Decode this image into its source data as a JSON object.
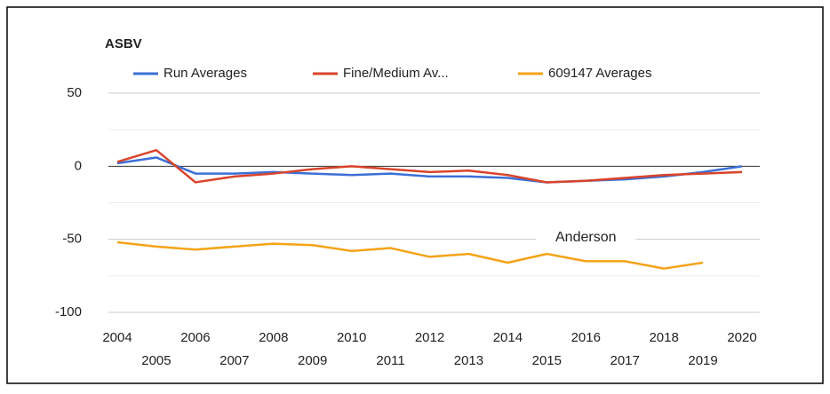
{
  "chart_data": {
    "type": "line",
    "title": "ASBV",
    "x": [
      2004,
      2005,
      2006,
      2007,
      2008,
      2009,
      2010,
      2011,
      2012,
      2013,
      2014,
      2015,
      2016,
      2017,
      2018,
      2019,
      2020
    ],
    "series": [
      {
        "name": "Run Averages",
        "color": "#3c6fd6",
        "values": [
          2,
          6,
          -5,
          -5,
          -4,
          -5,
          -6,
          -5,
          -7,
          -7,
          -8,
          -11,
          -10,
          -9,
          -7,
          -4,
          0
        ]
      },
      {
        "name": "Fine/Medium Av...",
        "color": "#d9442b",
        "values": [
          3,
          11,
          -11,
          -7,
          -5,
          -2,
          0,
          -2,
          -4,
          -3,
          -6,
          -11,
          -10,
          -8,
          -6,
          -5,
          -4
        ]
      },
      {
        "name": "609147 Averages",
        "color": "#f5a319",
        "values": [
          -52,
          -55,
          -57,
          -55,
          -53,
          -54,
          -58,
          -56,
          -62,
          -60,
          -66,
          -60,
          -65,
          -65,
          -70,
          -66,
          null
        ]
      }
    ],
    "xlim": [
      2004,
      2020
    ],
    "xticks": [
      2004,
      2005,
      2006,
      2007,
      2008,
      2009,
      2010,
      2011,
      2012,
      2013,
      2014,
      2015,
      2016,
      2017,
      2018,
      2019,
      2020
    ],
    "ylim": [
      -100,
      50
    ],
    "yticks": [
      -100,
      -50,
      0,
      50
    ],
    "minor_yticks": [
      -75,
      -25,
      25
    ],
    "grid": true,
    "legend": "top",
    "annotations": [
      {
        "text": "Anderson",
        "x": 2016,
        "y": -50
      }
    ]
  }
}
